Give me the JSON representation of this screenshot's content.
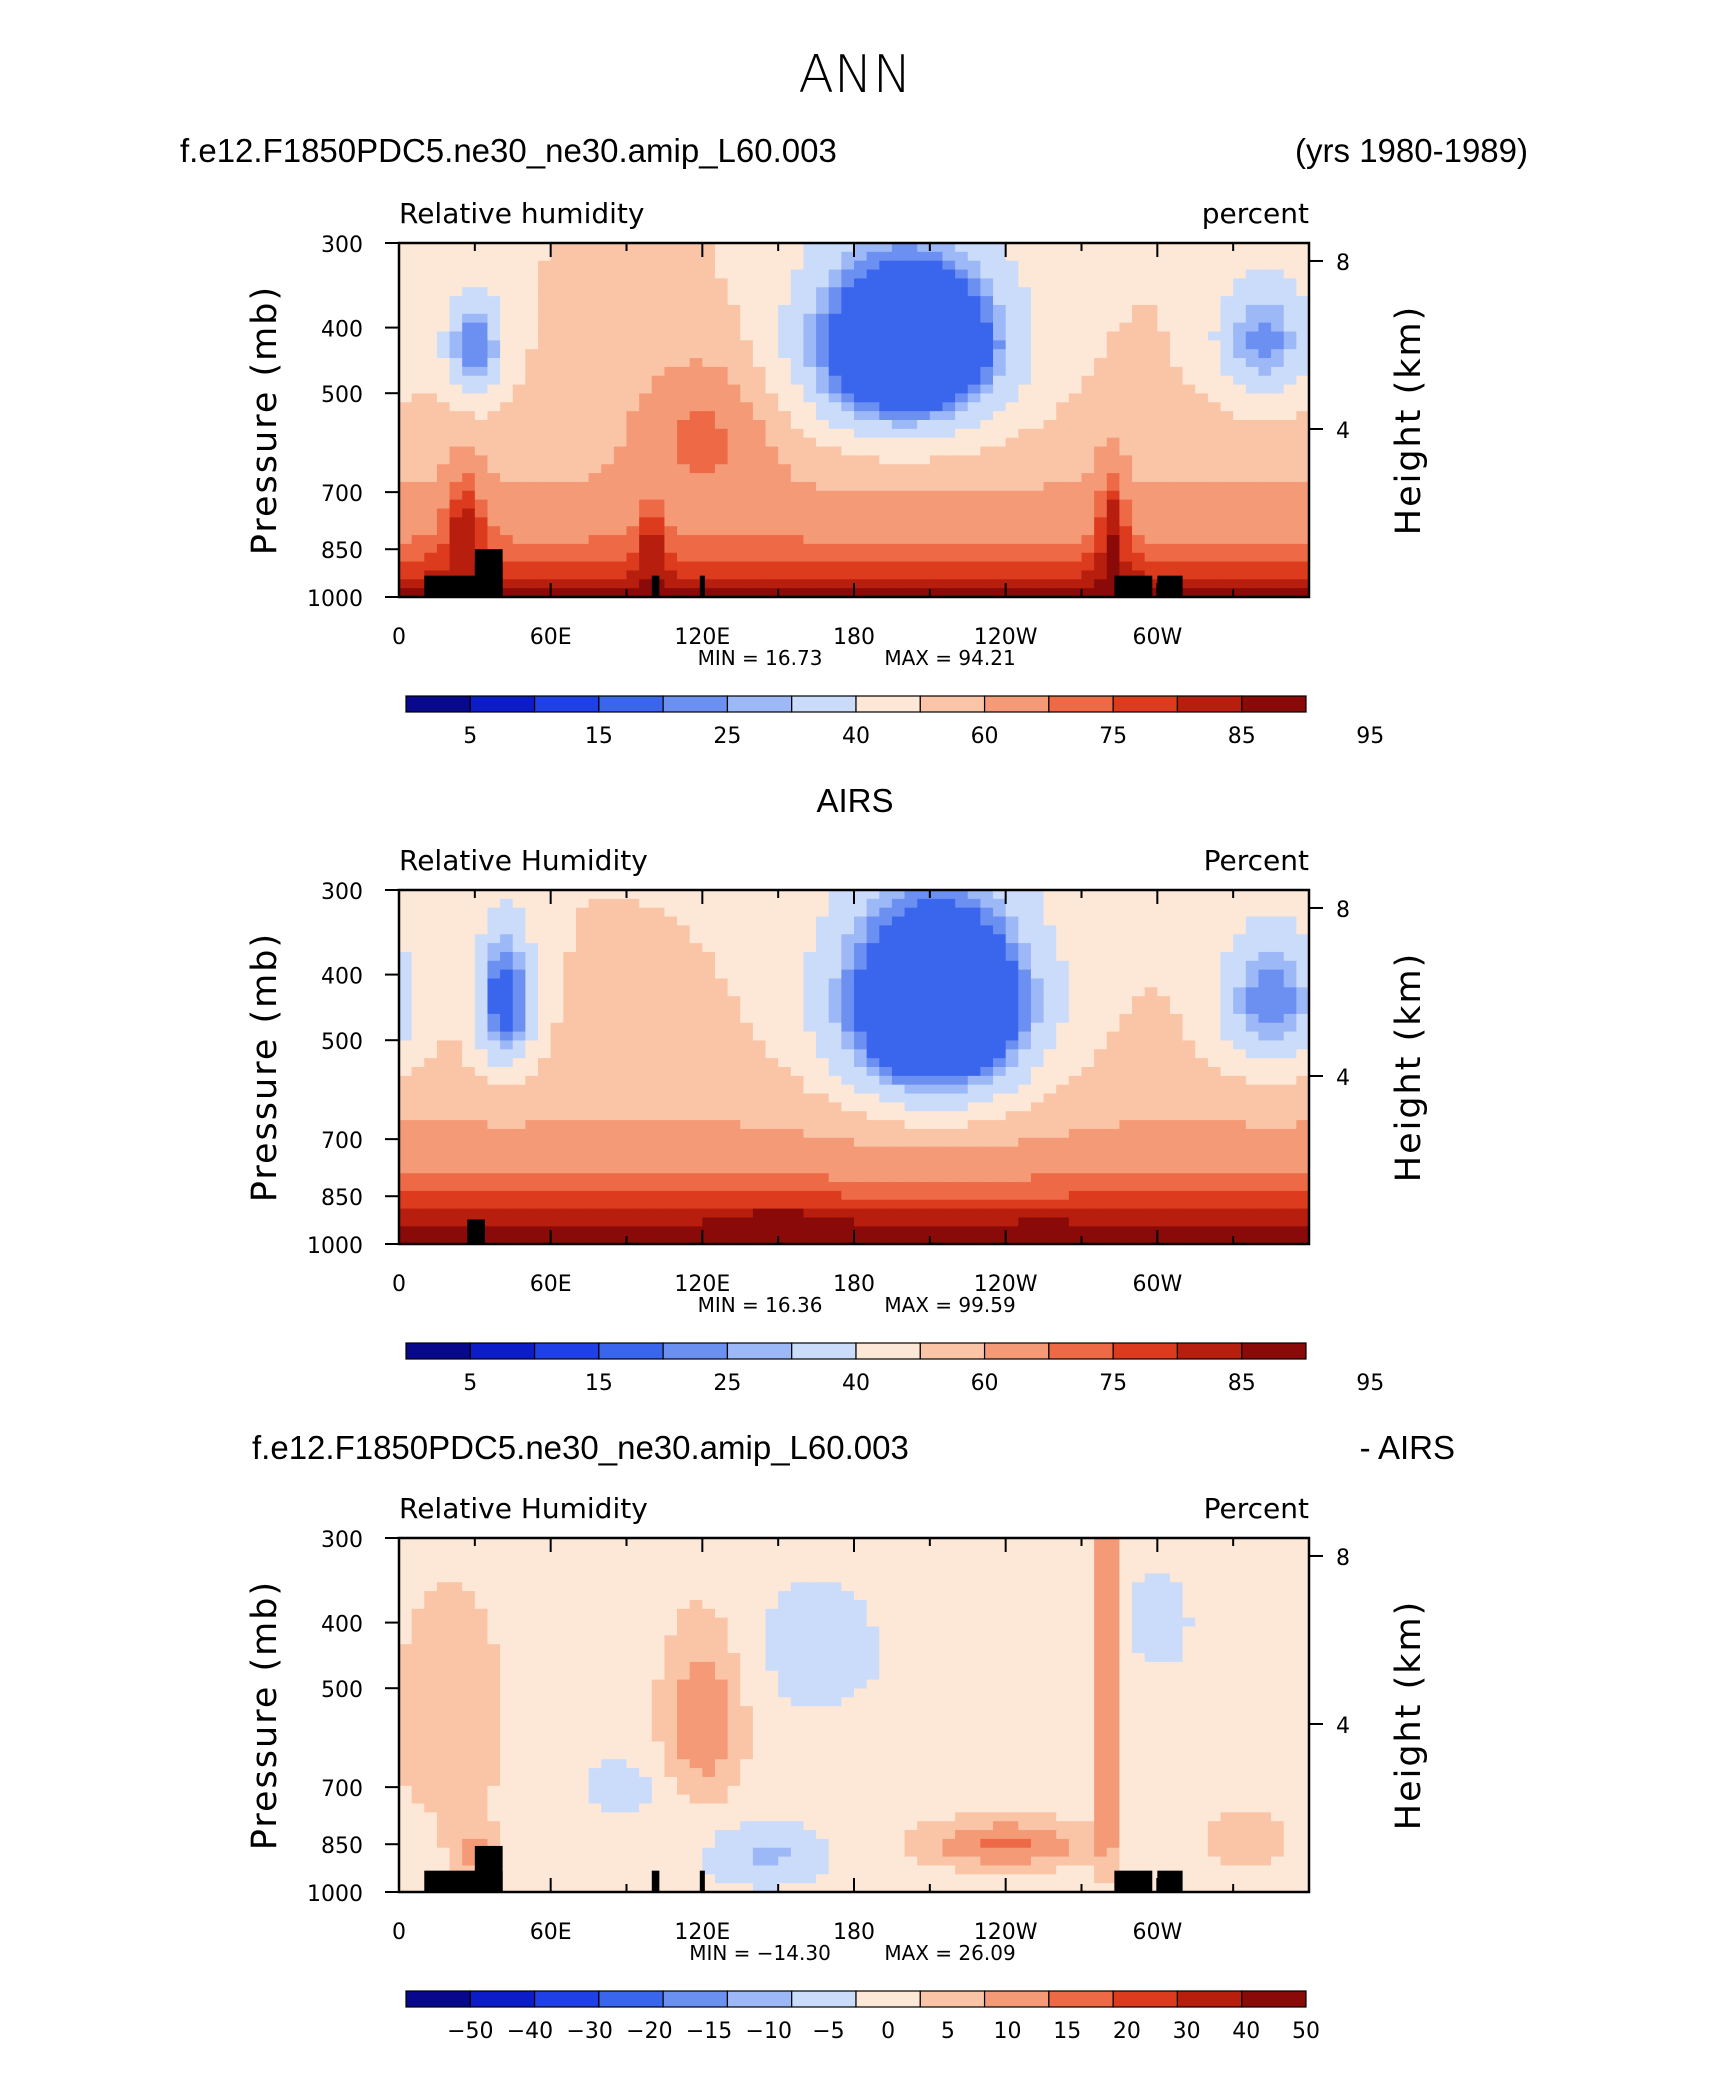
{
  "figure": {
    "title": "ANN",
    "panel1_case": "f.e12.F1850PDC5.ne30_ne30.amip_L60.003",
    "panel1_years": "(yrs 1980-1989)",
    "panel2_case": "AIRS",
    "panel3_case": "f.e12.F1850PDC5.ne30_ne30.amip_L60.003",
    "panel3_suffix": "- AIRS"
  },
  "colors": {
    "abs_palette": [
      "#08088c",
      "#0c1cc8",
      "#1e40e6",
      "#3a66ee",
      "#6c90f2",
      "#9cb8f6",
      "#cadcfa",
      "#fde8d8",
      "#fac4a6",
      "#f59a76",
      "#ee6a46",
      "#dd3b1e",
      "#b81e0e",
      "#8a0a0a"
    ],
    "diff_palette": [
      "#08088c",
      "#0c1cc8",
      "#1e40e6",
      "#3a66ee",
      "#6c90f2",
      "#9cb8f6",
      "#cadcfa",
      "#fde8d8",
      "#fac4a6",
      "#f59a76",
      "#ee6a46",
      "#dd3b1e",
      "#b81e0e",
      "#8a0a0a"
    ],
    "topography": "#000000"
  },
  "chart_data": [
    {
      "type": "heatmap",
      "title": "f.e12.F1850PDC5.ne30_ne30.amip_L60.003",
      "years": "(yrs 1980-1989)",
      "left_label": "Relative humidity",
      "right_label": "percent",
      "xlabel": "",
      "ylabel": "Pressure (mb)",
      "y2label": "Height (km)",
      "x_ticks": [
        "0",
        "60E",
        "120E",
        "180",
        "120W",
        "60W"
      ],
      "x_values": [
        0,
        60,
        120,
        180,
        240,
        300
      ],
      "xlim": [
        0,
        360
      ],
      "y_ticks": [
        "300",
        "400",
        "500",
        "700",
        "850",
        "1000"
      ],
      "y_values": [
        300,
        400,
        500,
        700,
        850,
        1000
      ],
      "ylim": [
        1000,
        300
      ],
      "yscale": "log",
      "y2_ticks": [
        "8",
        "4"
      ],
      "y2_values": [
        8,
        4
      ],
      "min_text": "MIN =    16.73",
      "max_text": "MAX =    94.21",
      "colorbar_labels": [
        "5",
        "15",
        "25",
        "40",
        "60",
        "75",
        "85",
        "95"
      ],
      "colorbar_levels": [
        5,
        10,
        15,
        20,
        25,
        30,
        40,
        50,
        60,
        70,
        75,
        80,
        85,
        90,
        95
      ],
      "field_min": 16.73,
      "field_max": 94.21,
      "surface_rh": 88,
      "features": [
        {
          "lon": 200,
          "p": 430,
          "dlon": 40,
          "dp": 140,
          "amp": -55
        },
        {
          "lon": 210,
          "p": 420,
          "dlon": 22,
          "dp": 70,
          "amp": -15
        },
        {
          "lon": 30,
          "p": 430,
          "dlon": 12,
          "dp": 80,
          "amp": -32
        },
        {
          "lon": 342,
          "p": 420,
          "dlon": 20,
          "dp": 90,
          "amp": -28
        },
        {
          "lon": 120,
          "p": 560,
          "dlon": 28,
          "dp": 140,
          "amp": 18
        },
        {
          "lon": 26,
          "p": 760,
          "dlon": 8,
          "dp": 140,
          "amp": 18
        },
        {
          "lon": 282,
          "p": 760,
          "dlon": 6,
          "dp": 160,
          "amp": 18
        },
        {
          "lon": 100,
          "p": 820,
          "dlon": 6,
          "dp": 120,
          "amp": 12
        }
      ],
      "topography": [
        [
          10,
          1000,
          31,
          930
        ],
        [
          30,
          1000,
          41,
          900
        ],
        [
          30,
          1000,
          41,
          850
        ],
        [
          100,
          1000,
          103,
          930
        ],
        [
          119,
          1000,
          121,
          930
        ],
        [
          283,
          1000,
          298,
          930
        ],
        [
          300,
          1000,
          310,
          930
        ]
      ]
    },
    {
      "type": "heatmap",
      "title": "AIRS",
      "left_label": "Relative Humidity",
      "right_label": "Percent",
      "xlabel": "",
      "ylabel": "Pressure (mb)",
      "y2label": "Height (km)",
      "x_ticks": [
        "0",
        "60E",
        "120E",
        "180",
        "120W",
        "60W"
      ],
      "x_values": [
        0,
        60,
        120,
        180,
        240,
        300
      ],
      "xlim": [
        0,
        360
      ],
      "y_ticks": [
        "300",
        "400",
        "500",
        "700",
        "850",
        "1000"
      ],
      "y_values": [
        300,
        400,
        500,
        700,
        850,
        1000
      ],
      "ylim": [
        1000,
        300
      ],
      "yscale": "log",
      "y2_ticks": [
        "8",
        "4"
      ],
      "y2_values": [
        8,
        4
      ],
      "min_text": "MIN =    16.36",
      "max_text": "MAX =    99.59",
      "colorbar_labels": [
        "5",
        "15",
        "25",
        "40",
        "60",
        "75",
        "85",
        "95"
      ],
      "colorbar_levels": [
        5,
        10,
        15,
        20,
        25,
        30,
        40,
        50,
        60,
        70,
        75,
        80,
        85,
        90,
        95
      ],
      "field_min": 16.36,
      "field_max": 99.59,
      "surface_rh": 93,
      "features": [
        {
          "lon": 212,
          "p": 450,
          "dlon": 40,
          "dp": 170,
          "amp": -58
        },
        {
          "lon": 218,
          "p": 440,
          "dlon": 22,
          "dp": 80,
          "amp": -16
        },
        {
          "lon": 42,
          "p": 440,
          "dlon": 12,
          "dp": 110,
          "amp": -38
        },
        {
          "lon": 345,
          "p": 440,
          "dlon": 22,
          "dp": 110,
          "amp": -30
        },
        {
          "lon": 150,
          "p": 930,
          "dlon": 20,
          "dp": 50,
          "amp": 8
        },
        {
          "lon": 255,
          "p": 980,
          "dlon": 20,
          "dp": 40,
          "amp": 8
        }
      ],
      "topography": [
        [
          27,
          1000,
          34,
          920
        ]
      ]
    },
    {
      "type": "heatmap",
      "title": "f.e12.F1850PDC5.ne30_ne30.amip_L60.003",
      "suffix": "- AIRS",
      "left_label": "Relative Humidity",
      "right_label": "Percent",
      "xlabel": "",
      "ylabel": "Pressure (mb)",
      "y2label": "Height (km)",
      "x_ticks": [
        "0",
        "60E",
        "120E",
        "180",
        "120W",
        "60W"
      ],
      "x_values": [
        0,
        60,
        120,
        180,
        240,
        300
      ],
      "xlim": [
        0,
        360
      ],
      "y_ticks": [
        "300",
        "400",
        "500",
        "700",
        "850",
        "1000"
      ],
      "y_values": [
        300,
        400,
        500,
        700,
        850,
        1000
      ],
      "ylim": [
        1000,
        300
      ],
      "yscale": "log",
      "y2_ticks": [
        "8",
        "4"
      ],
      "y2_values": [
        8,
        4
      ],
      "min_text": "MIN =  −14.30",
      "max_text": "MAX =    26.09",
      "colorbar_labels": [
        "−50",
        "−40",
        "−30",
        "−20",
        "−15",
        "−10",
        "−5",
        "0",
        "5",
        "10",
        "15",
        "20",
        "30",
        "40",
        "50"
      ],
      "colorbar_levels": [
        -50,
        -40,
        -30,
        -20,
        -15,
        -10,
        -5,
        0,
        5,
        10,
        15,
        20,
        30,
        40,
        50
      ],
      "field_min": -14.3,
      "field_max": 26.09,
      "features": [
        {
          "lon": 20,
          "p": 560,
          "dlon": 22,
          "dp": 220,
          "amp": 8
        },
        {
          "lon": 120,
          "p": 560,
          "dlon": 16,
          "dp": 160,
          "amp": 13
        },
        {
          "lon": 240,
          "p": 850,
          "dlon": 34,
          "dp": 70,
          "amp": 14
        },
        {
          "lon": 280,
          "p": 500,
          "dlon": 5,
          "dp": 400,
          "amp": 16
        },
        {
          "lon": 145,
          "p": 880,
          "dlon": 22,
          "dp": 90,
          "amp": -8
        },
        {
          "lon": 165,
          "p": 440,
          "dlon": 30,
          "dp": 110,
          "amp": -4
        },
        {
          "lon": 300,
          "p": 400,
          "dlon": 12,
          "dp": 60,
          "amp": -6
        },
        {
          "lon": 90,
          "p": 700,
          "dlon": 18,
          "dp": 80,
          "amp": -4
        },
        {
          "lon": 30,
          "p": 880,
          "dlon": 10,
          "dp": 80,
          "amp": 9
        },
        {
          "lon": 335,
          "p": 840,
          "dlon": 15,
          "dp": 80,
          "amp": 8
        }
      ],
      "topography": [
        [
          10,
          1000,
          31,
          930
        ],
        [
          30,
          1000,
          41,
          930
        ],
        [
          30,
          1000,
          41,
          855
        ],
        [
          100,
          1000,
          103,
          930
        ],
        [
          119,
          1000,
          121,
          930
        ],
        [
          283,
          1000,
          298,
          930
        ],
        [
          300,
          1000,
          310,
          930
        ]
      ]
    }
  ]
}
